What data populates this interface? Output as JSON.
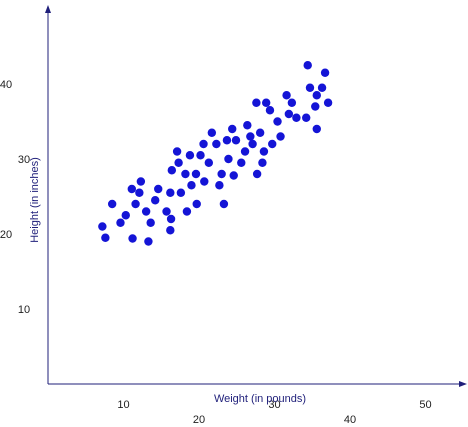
{
  "chart_data": {
    "type": "scatter",
    "title": "",
    "xlabel": "Weight (in pounds)",
    "ylabel": "Height (in inches)",
    "xlim": [
      0,
      55
    ],
    "ylim": [
      0,
      50
    ],
    "x_ticks": [
      {
        "value": 10,
        "label": "10"
      },
      {
        "value": 20,
        "label": "20"
      },
      {
        "value": 30,
        "label": "30"
      },
      {
        "value": 40,
        "label": "40"
      },
      {
        "value": 50,
        "label": "50"
      }
    ],
    "y_ticks": [
      {
        "value": 10,
        "label": "10"
      },
      {
        "value": 20,
        "label": "20"
      },
      {
        "value": 30,
        "label": "30"
      },
      {
        "value": 40,
        "label": "40"
      }
    ],
    "grid": false,
    "legend": "none",
    "point_color": "#1414d6",
    "axis_color": "#1f1f7a",
    "points": [
      [
        7.2,
        21.0
      ],
      [
        7.6,
        19.5
      ],
      [
        8.5,
        24.0
      ],
      [
        9.6,
        21.5
      ],
      [
        10.3,
        22.5
      ],
      [
        11.1,
        26.0
      ],
      [
        11.2,
        19.4
      ],
      [
        11.6,
        24.0
      ],
      [
        12.1,
        25.5
      ],
      [
        12.3,
        27.0
      ],
      [
        13.0,
        23.0
      ],
      [
        13.3,
        19.0
      ],
      [
        13.6,
        21.5
      ],
      [
        14.2,
        24.5
      ],
      [
        14.6,
        26.0
      ],
      [
        15.7,
        23.0
      ],
      [
        16.2,
        25.5
      ],
      [
        16.3,
        22.0
      ],
      [
        16.2,
        20.5
      ],
      [
        16.4,
        28.5
      ],
      [
        17.1,
        31.0
      ],
      [
        17.3,
        29.5
      ],
      [
        17.6,
        25.5
      ],
      [
        18.2,
        28.0
      ],
      [
        18.4,
        23.0
      ],
      [
        18.8,
        30.5
      ],
      [
        19.0,
        26.5
      ],
      [
        19.6,
        28.0
      ],
      [
        19.7,
        24.0
      ],
      [
        20.2,
        30.5
      ],
      [
        20.6,
        32.0
      ],
      [
        20.7,
        27.0
      ],
      [
        21.3,
        29.5
      ],
      [
        21.7,
        33.5
      ],
      [
        22.3,
        32.0
      ],
      [
        22.7,
        26.5
      ],
      [
        23.0,
        28.0
      ],
      [
        23.3,
        24.0
      ],
      [
        23.7,
        32.5
      ],
      [
        23.9,
        30.0
      ],
      [
        24.4,
        34.0
      ],
      [
        24.6,
        27.8
      ],
      [
        24.9,
        32.5
      ],
      [
        25.6,
        29.5
      ],
      [
        26.1,
        31.0
      ],
      [
        26.4,
        34.5
      ],
      [
        26.8,
        33.0
      ],
      [
        27.1,
        32.0
      ],
      [
        27.6,
        37.5
      ],
      [
        27.7,
        28.0
      ],
      [
        28.1,
        33.5
      ],
      [
        28.4,
        29.5
      ],
      [
        28.6,
        31.0
      ],
      [
        28.9,
        37.5
      ],
      [
        29.4,
        36.5
      ],
      [
        29.7,
        32.0
      ],
      [
        30.4,
        35.0
      ],
      [
        30.8,
        33.0
      ],
      [
        31.6,
        38.5
      ],
      [
        31.9,
        36.0
      ],
      [
        32.3,
        37.5
      ],
      [
        32.9,
        35.5
      ],
      [
        34.2,
        35.5
      ],
      [
        34.4,
        42.5
      ],
      [
        34.7,
        39.5
      ],
      [
        35.4,
        37.0
      ],
      [
        35.6,
        34.0
      ],
      [
        35.6,
        38.5
      ],
      [
        36.3,
        39.5
      ],
      [
        36.7,
        41.5
      ],
      [
        37.1,
        37.5
      ]
    ]
  }
}
